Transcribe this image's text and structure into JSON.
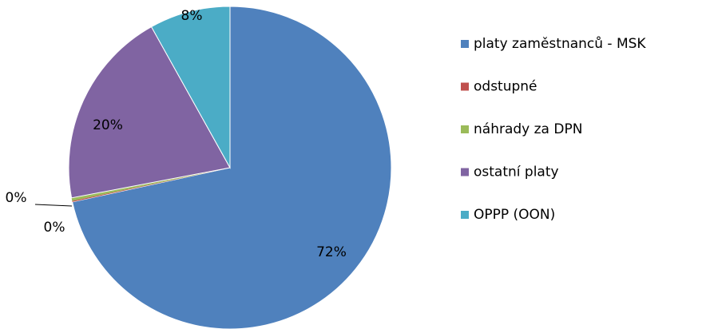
{
  "chart_data": {
    "type": "pie",
    "categories": [
      "platy zaměstnanců - MSK",
      "odstupné",
      "náhrady za DPN",
      "ostatní platy",
      "OPPP (OON)"
    ],
    "values": [
      71.6,
      0.1,
      0.3,
      19.9,
      8.1
    ],
    "value_labels": [
      "72%",
      "0%",
      "0%",
      "20%",
      "8%"
    ],
    "colors": [
      "#4f81bd",
      "#c0504d",
      "#9bbb59",
      "#8064a2",
      "#4bacc6"
    ],
    "legend": "right"
  }
}
